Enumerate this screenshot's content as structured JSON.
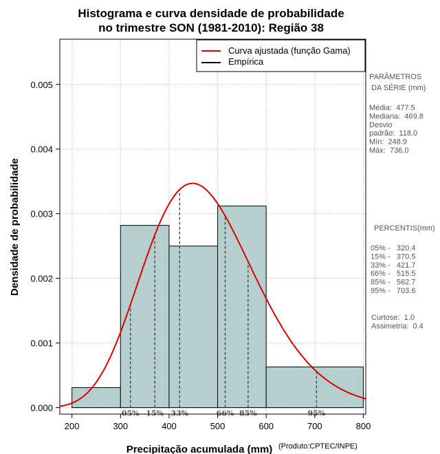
{
  "chart_data": {
    "type": "bar",
    "title_line1": "Histograma e curva densidade de probabilidade",
    "title_line2": "no trimestre SON (1981-2010): Região 38",
    "xlabel": "Precipitação acumulada (mm)",
    "ylabel": "Densidade de probabilidade",
    "credit": "(Produto:CPTEC/INPE)",
    "xlim": [
      175,
      805
    ],
    "ylim": [
      -0.0001,
      0.0057
    ],
    "x_ticks": [
      "200",
      "300",
      "400",
      "500",
      "600",
      "700",
      "800"
    ],
    "y_ticks": [
      "0.000",
      "0.001",
      "0.002",
      "0.003",
      "0.004",
      "0.005"
    ],
    "bins": [
      {
        "from": 200,
        "to": 300,
        "density": 0.00031
      },
      {
        "from": 300,
        "to": 400,
        "density": 0.00282
      },
      {
        "from": 400,
        "to": 500,
        "density": 0.0025
      },
      {
        "from": 500,
        "to": 600,
        "density": 0.00312
      },
      {
        "from": 600,
        "to": 800,
        "density": 0.00063
      }
    ],
    "gamma_fit": {
      "mean": 477.5,
      "sd": 118.0
    },
    "percentile_marks": [
      {
        "label": "05%",
        "value": 320.4
      },
      {
        "label": "15%",
        "value": 370.5
      },
      {
        "label": "33%",
        "value": 421.7
      },
      {
        "label": "66%",
        "value": 515.5
      },
      {
        "label": "85%",
        "value": 562.7
      },
      {
        "label": "95%",
        "value": 703.6
      }
    ],
    "legend": [
      {
        "label": "Curva ajustada (função Gama)",
        "color": "#e00000"
      },
      {
        "label": "Empírica",
        "color": "#000000"
      }
    ],
    "bar_color": "#b5cece",
    "curve_color": "#e00000",
    "side_panel": {
      "params_title_1": "PARÂMETROS",
      "params_title_2": "DA SÉRIE (mm)",
      "params": [
        "Média:  477.5",
        "Mediana:  469.8",
        "Desvio",
        "padrão:  118.0",
        "Mín:  248.9",
        "Máx:  736.0"
      ],
      "percentis_title": "PERCENTIS(mm)",
      "percentis": [
        "05% -   320.4",
        "15% -   370.5",
        "33% -   421.7",
        "66% -   515.5",
        "85% -   562.7",
        "95% -   703.6"
      ],
      "stats": [
        "Curtose:  1.0",
        "Assimetria:  0.4"
      ]
    }
  }
}
